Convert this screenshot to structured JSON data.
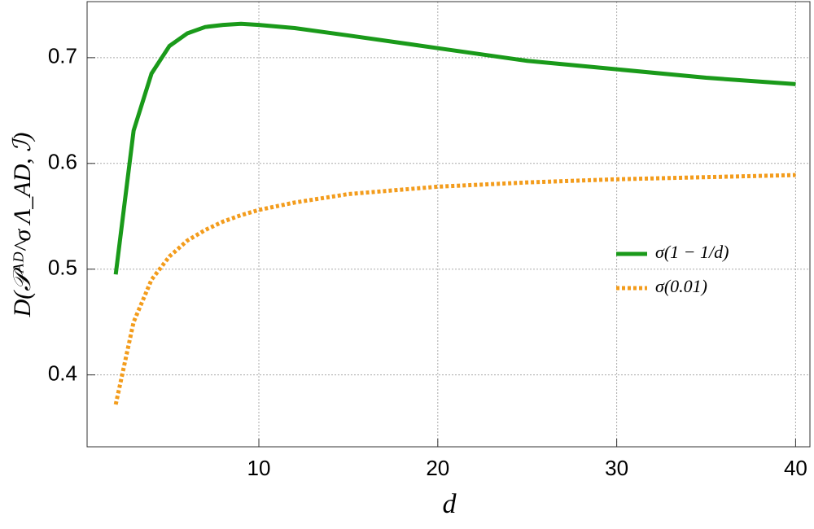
{
  "chart_data": {
    "type": "line",
    "xlabel": "d",
    "ylabel": "D(𝒫ᴬᴰ^σ Λ_AD, ℐ)",
    "x": [
      2,
      3,
      4,
      5,
      6,
      7,
      8,
      9,
      10,
      12,
      15,
      20,
      25,
      30,
      35,
      40
    ],
    "series": [
      {
        "name": "σ(1 − 1/d)",
        "color": "#1a9a1a",
        "dash": "solid",
        "values": [
          0.495,
          0.631,
          0.685,
          0.711,
          0.723,
          0.729,
          0.731,
          0.732,
          0.731,
          0.728,
          0.721,
          0.709,
          0.697,
          0.689,
          0.681,
          0.675
        ]
      },
      {
        "name": "σ(0.01)",
        "color": "#f39c1c",
        "dash": "dotted",
        "values": [
          0.372,
          0.45,
          0.49,
          0.512,
          0.527,
          0.537,
          0.545,
          0.551,
          0.556,
          0.563,
          0.571,
          0.578,
          0.582,
          0.585,
          0.587,
          0.589
        ]
      }
    ],
    "xlim": [
      0.4,
      40.8
    ],
    "ylim": [
      0.332,
      0.753
    ],
    "xticks": [
      10,
      20,
      30,
      40
    ],
    "yticks": [
      0.4,
      0.5,
      0.6,
      0.7
    ],
    "grid": true,
    "legend": "right"
  }
}
